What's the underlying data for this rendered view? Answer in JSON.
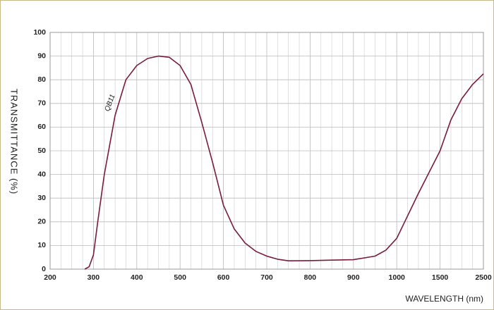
{
  "chart_data": {
    "type": "line",
    "x_label": "WAVELENGTH (nm)",
    "y_label": "TRANSMITTANCE  (%)",
    "xlim": [
      200,
      2500
    ],
    "xticks": [
      200,
      300,
      400,
      500,
      600,
      700,
      800,
      900,
      1000,
      1500,
      2500
    ],
    "ylim": [
      0,
      100
    ],
    "yticks": [
      0,
      10,
      20,
      30,
      40,
      50,
      60,
      70,
      80,
      90,
      100
    ],
    "grid": true,
    "x": [
      280,
      290,
      300,
      310,
      325,
      350,
      375,
      400,
      425,
      450,
      475,
      500,
      525,
      550,
      575,
      600,
      625,
      650,
      675,
      700,
      725,
      750,
      800,
      850,
      900,
      950,
      975,
      1000,
      1250,
      1500,
      1750,
      2000,
      2250,
      2500
    ],
    "series": [
      {
        "name": "QB11",
        "color": "#7a1a3c",
        "values": [
          0,
          1,
          6,
          20,
          40,
          65,
          80,
          86,
          89,
          90,
          89.5,
          86,
          78,
          62,
          45,
          27,
          17,
          11,
          7.5,
          5.5,
          4.2,
          3.5,
          3.6,
          3.8,
          4,
          5.5,
          8,
          13,
          32,
          50,
          63,
          72,
          78,
          82.5
        ]
      }
    ]
  }
}
